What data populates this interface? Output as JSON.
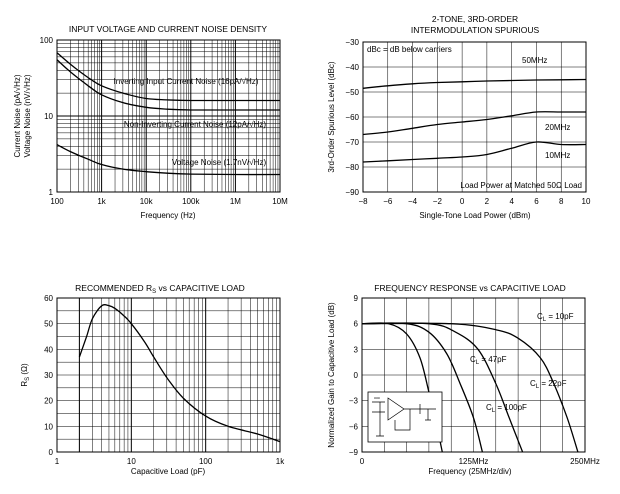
{
  "chart_data": [
    {
      "type": "line",
      "title": "INPUT VOLTAGE AND CURRENT NOISE DENSITY",
      "xlabel": "Frequency (Hz)",
      "ylabel": "Current Noise (pA/√Hz)",
      "ylabel2": "Voltage Noise (nV/√Hz)",
      "xscale": "log",
      "yscale": "log",
      "xlim": [
        100,
        10000000
      ],
      "ylim": [
        1,
        100
      ],
      "xticks": [
        "100",
        "1k",
        "10k",
        "100k",
        "1M",
        "10M"
      ],
      "yticks": [
        "1",
        "10",
        "100"
      ],
      "series": [
        {
          "name": "Inverting Input Current Noise (16pA/√Hz)",
          "x": [
            100,
            200,
            500,
            1000,
            3000,
            10000,
            30000,
            100000,
            1000000,
            10000000
          ],
          "y": [
            68,
            48,
            32,
            25,
            20,
            17,
            16.3,
            16,
            16,
            16
          ]
        },
        {
          "name": "Non-Inverting Current Noise (12pA/√Hz)",
          "x": [
            100,
            200,
            500,
            1000,
            3000,
            10000,
            30000,
            100000,
            1000000,
            10000000
          ],
          "y": [
            55,
            38,
            25,
            19,
            15,
            13,
            12.3,
            12,
            12,
            12
          ]
        },
        {
          "name": "Voltage Noise (1.7nV/√Hz)",
          "x": [
            100,
            200,
            500,
            1000,
            3000,
            10000,
            30000,
            100000,
            1000000,
            10000000
          ],
          "y": [
            4.2,
            3.4,
            2.7,
            2.3,
            2.0,
            1.85,
            1.77,
            1.72,
            1.7,
            1.7
          ]
        }
      ],
      "labels": [
        "Inverting Input Current Noise (16pA/√Hz)",
        "Non-Inverting Current Noise (12pA/√Hz)",
        "Voltage Noise (1.7nV/√Hz)"
      ]
    },
    {
      "type": "line",
      "title": "2-TONE, 3RD-ORDER",
      "subtitle": "INTERMODULATION SPURIOUS",
      "xlabel": "Single-Tone Load Power (dBm)",
      "ylabel": "3rd-Order Spurious Level (dBc)",
      "xlim": [
        -8,
        10
      ],
      "ylim": [
        -90,
        -30
      ],
      "xticks": [
        "−8",
        "−6",
        "−4",
        "−2",
        "0",
        "2",
        "4",
        "6",
        "8",
        "10"
      ],
      "yticks": [
        "−30",
        "−40",
        "−50",
        "−60",
        "−70",
        "−80",
        "−90"
      ],
      "annotations": [
        "dBc = dB below carriers",
        "Load Power at Matched 50Ω Load"
      ],
      "series": [
        {
          "name": "50MHz",
          "x": [
            -8,
            -6,
            -4,
            -2,
            0,
            2,
            4,
            6,
            8,
            10
          ],
          "y": [
            -48.5,
            -47.5,
            -46.7,
            -46.2,
            -45.9,
            -45.6,
            -45.4,
            -45.2,
            -45.1,
            -45
          ]
        },
        {
          "name": "20MHz",
          "x": [
            -8,
            -6,
            -4,
            -2,
            0,
            2,
            4,
            6,
            8,
            10
          ],
          "y": [
            -67,
            -66,
            -64.5,
            -63,
            -62,
            -61,
            -59.5,
            -58,
            -58,
            -58
          ]
        },
        {
          "name": "10MHz",
          "x": [
            -8,
            -6,
            -4,
            -2,
            0,
            2,
            4,
            6,
            8,
            10
          ],
          "y": [
            -78,
            -77.5,
            -77,
            -76.5,
            -76,
            -75,
            -72.5,
            -70,
            -71,
            -71
          ]
        }
      ]
    },
    {
      "type": "line",
      "title": "RECOMMENDED R",
      "title_sub": "S",
      "title_rest": " vs CAPACITIVE LOAD",
      "xlabel": "Capacitive Load (pF)",
      "ylabel": "R",
      "ylabel_sub": "S",
      "ylabel_unit": " (Ω)",
      "xscale": "log",
      "xlim": [
        1,
        1000
      ],
      "ylim": [
        0,
        60
      ],
      "xticks": [
        "1",
        "10",
        "100",
        "1k"
      ],
      "yticks": [
        "0",
        "10",
        "20",
        "30",
        "40",
        "50",
        "60"
      ],
      "series": [
        {
          "name": "Rs",
          "x": [
            2,
            2.5,
            3,
            4,
            5,
            6,
            8,
            10,
            15,
            20,
            30,
            50,
            100,
            200,
            500,
            1000
          ],
          "y": [
            37,
            45,
            52,
            57,
            57,
            56,
            53,
            50,
            43,
            37,
            29,
            21,
            14,
            10,
            7,
            4
          ]
        }
      ]
    },
    {
      "type": "line",
      "title": "FREQUENCY RESPONSE vs CAPACITIVE LOAD",
      "xlabel": "Frequency (25MHz/div)",
      "ylabel": "Normalized Gain to Capacitive Load (dB)",
      "xlim": [
        0,
        250
      ],
      "ylim": [
        -9,
        9
      ],
      "xticks": [
        "0",
        "125MHz",
        "250MHz"
      ],
      "yticks": [
        "9",
        "6",
        "3",
        "0",
        "−3",
        "−6",
        "−9"
      ],
      "series": [
        {
          "name": "C",
          "sub": "L",
          "rest": " = 10pF",
          "x": [
            0,
            100,
            150,
            175,
            200,
            215,
            230,
            242
          ],
          "y": [
            6,
            6,
            5.3,
            4.3,
            2,
            -1,
            -5,
            -9
          ]
        },
        {
          "name": "C",
          "sub": "L",
          "rest": " = 22pF",
          "x": [
            0,
            75,
            105,
            130,
            150,
            165,
            180
          ],
          "y": [
            6,
            6,
            5,
            3,
            -1,
            -5,
            -9
          ]
        },
        {
          "name": "C",
          "sub": "L",
          "rest": " = 47pF",
          "x": [
            0,
            50,
            75,
            95,
            110,
            125,
            135
          ],
          "y": [
            6,
            6,
            5,
            2.5,
            -1,
            -5,
            -9
          ]
        },
        {
          "name": "C",
          "sub": "L",
          "rest": " = 100pF",
          "x": [
            0,
            30,
            50,
            65,
            75,
            82,
            90
          ],
          "y": [
            6,
            6,
            4.8,
            2,
            -2,
            -5,
            -9
          ]
        }
      ],
      "inset_label": "Circuit schematic (inset)"
    }
  ]
}
